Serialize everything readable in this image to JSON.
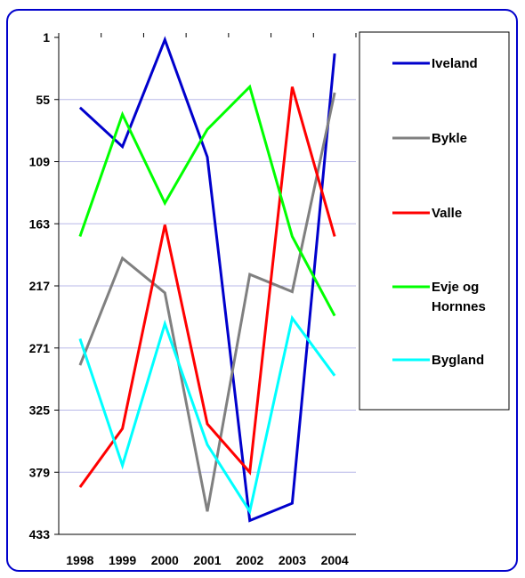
{
  "chart_data": {
    "type": "line",
    "title": "",
    "xlabel": "",
    "ylabel": "",
    "categories": [
      "1998",
      "1999",
      "2000",
      "2001",
      "2002",
      "2003",
      "2004"
    ],
    "y_ticks": [
      "1",
      "55",
      "109",
      "163",
      "217",
      "271",
      "325",
      "379",
      "433"
    ],
    "ylim": [
      1,
      433
    ],
    "y_reversed": true,
    "grid": "horizontal",
    "legend_position": "right",
    "series": [
      {
        "name": "Iveland",
        "color": "#0000cc",
        "values": [
          62,
          96,
          3,
          105,
          421,
          406,
          15
        ]
      },
      {
        "name": "Bykle",
        "color": "#808080",
        "values": [
          286,
          193,
          223,
          413,
          207,
          222,
          49
        ]
      },
      {
        "name": "Valle",
        "color": "#ff0000",
        "values": [
          392,
          341,
          164,
          337,
          379,
          44,
          174
        ]
      },
      {
        "name": "Evje og Hornnes",
        "color": "#00ff00",
        "values": [
          174,
          68,
          145,
          81,
          44,
          174,
          243
        ]
      },
      {
        "name": "Bygland",
        "color": "#00ffff",
        "values": [
          263,
          373,
          250,
          355,
          413,
          245,
          295
        ]
      }
    ]
  }
}
